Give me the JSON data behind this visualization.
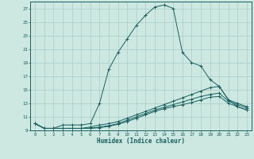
{
  "xlabel": "Humidex (Indice chaleur)",
  "background_color": "#cce8e0",
  "grid_color": "#aacccc",
  "line_color": "#1a6060",
  "xlim": [
    -0.5,
    23.5
  ],
  "ylim": [
    9,
    28
  ],
  "yticks": [
    9,
    11,
    13,
    15,
    17,
    19,
    21,
    23,
    25,
    27
  ],
  "xticks": [
    0,
    1,
    2,
    3,
    4,
    5,
    6,
    7,
    8,
    9,
    10,
    11,
    12,
    13,
    14,
    15,
    16,
    17,
    18,
    19,
    20,
    21,
    22,
    23
  ],
  "series": {
    "main": {
      "x": [
        0,
        1,
        2,
        3,
        4,
        5,
        6,
        7,
        8,
        9,
        10,
        11,
        12,
        13,
        14,
        15,
        16,
        17,
        18,
        19,
        20,
        21,
        22,
        23
      ],
      "y": [
        10.0,
        9.3,
        9.3,
        9.8,
        9.8,
        9.8,
        10.0,
        13.0,
        18.0,
        20.5,
        22.5,
        24.5,
        26.0,
        27.2,
        27.5,
        27.0,
        20.5,
        19.0,
        18.5,
        16.5,
        15.5,
        13.5,
        12.5,
        12.0
      ]
    },
    "line2": {
      "x": [
        0,
        1,
        2,
        3,
        4,
        5,
        6,
        7,
        8,
        9,
        10,
        11,
        12,
        13,
        14,
        15,
        16,
        17,
        18,
        19,
        20,
        21,
        22,
        23
      ],
      "y": [
        10.0,
        9.3,
        9.3,
        9.3,
        9.3,
        9.3,
        9.5,
        9.8,
        10.0,
        10.3,
        10.8,
        11.3,
        11.8,
        12.3,
        12.8,
        13.3,
        13.8,
        14.3,
        14.8,
        15.3,
        15.5,
        13.5,
        13.0,
        12.5
      ]
    },
    "line3": {
      "x": [
        0,
        1,
        2,
        3,
        4,
        5,
        6,
        7,
        8,
        9,
        10,
        11,
        12,
        13,
        14,
        15,
        16,
        17,
        18,
        19,
        20,
        21,
        22,
        23
      ],
      "y": [
        10.0,
        9.3,
        9.3,
        9.3,
        9.3,
        9.3,
        9.3,
        9.5,
        9.7,
        10.0,
        10.5,
        11.0,
        11.5,
        12.0,
        12.4,
        12.8,
        13.2,
        13.6,
        14.0,
        14.3,
        14.5,
        13.3,
        12.8,
        12.3
      ]
    },
    "line4": {
      "x": [
        0,
        1,
        2,
        3,
        4,
        5,
        6,
        7,
        8,
        9,
        10,
        11,
        12,
        13,
        14,
        15,
        16,
        17,
        18,
        19,
        20,
        21,
        22,
        23
      ],
      "y": [
        10.0,
        9.3,
        9.3,
        9.3,
        9.3,
        9.3,
        9.3,
        9.4,
        9.6,
        9.9,
        10.3,
        10.8,
        11.3,
        11.8,
        12.2,
        12.5,
        12.8,
        13.1,
        13.5,
        13.9,
        14.0,
        13.0,
        12.5,
        12.0
      ]
    }
  }
}
